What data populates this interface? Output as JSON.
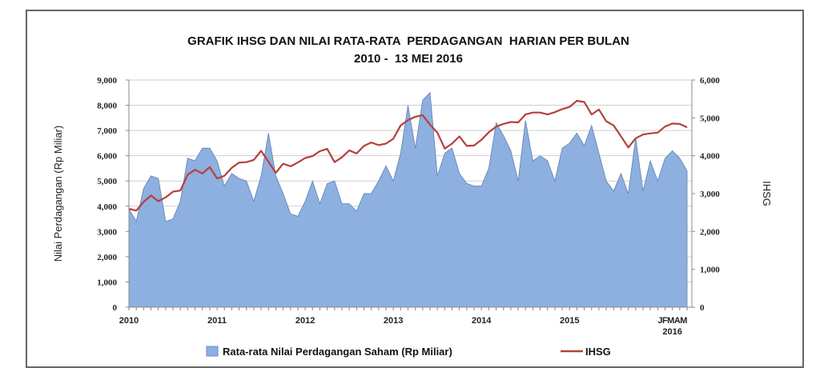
{
  "chart_data": {
    "type": "area+line",
    "title_line1": "GRAFIK IHSG DAN NILAI RATA-RATA  PERDAGANGAN  HARIAN PER BULAN",
    "title_line2": "2010 -  13 MEI 2016",
    "ylabel_left": "Nilai Perdagangan (Rp Miliar)",
    "ylabel_right": "IHSG",
    "ylim_left": [
      0,
      9000
    ],
    "ylim_right": [
      0,
      6000
    ],
    "yticks_left": [
      "0",
      "1,000",
      "2,000",
      "3,000",
      "4,000",
      "5,000",
      "6,000",
      "7,000",
      "8,000",
      "9,000"
    ],
    "yticks_right": [
      "0",
      "1,000",
      "2,000",
      "3,000",
      "4,000",
      "5,000",
      "6,000"
    ],
    "xtick_years": [
      "2010",
      "2011",
      "2012",
      "2013",
      "2014",
      "2015"
    ],
    "xtick_months_2016": "JFMAM",
    "xtick_2016": "2016",
    "grid": true,
    "legend_position": "bottom",
    "series": [
      {
        "name": "Rata-rata Nilai Perdagangan Saham (Rp Miliar)",
        "kind": "area",
        "axis": "left",
        "color": "#8db0e0",
        "values": [
          3900,
          3400,
          4700,
          5200,
          5100,
          3400,
          3500,
          4200,
          5900,
          5800,
          6300,
          6300,
          5800,
          4800,
          5300,
          5100,
          5000,
          4200,
          5200,
          6900,
          5200,
          4500,
          3700,
          3600,
          4200,
          5000,
          4100,
          4900,
          5000,
          4100,
          4100,
          3800,
          4500,
          4500,
          5000,
          5600,
          5000,
          6100,
          8000,
          6300,
          8200,
          8500,
          5200,
          6100,
          6300,
          5300,
          4900,
          4800,
          4800,
          5500,
          7300,
          6800,
          6200,
          5000,
          7400,
          5800,
          6000,
          5800,
          5000,
          6300,
          6500,
          6900,
          6400,
          7200,
          6100,
          5000,
          4600,
          5300,
          4500,
          6700,
          4600,
          5800,
          5000,
          5900,
          6200,
          5900,
          5400
        ]
      },
      {
        "name": "IHSG",
        "kind": "line",
        "axis": "right",
        "color": "#b5403c",
        "values": [
          2600,
          2550,
          2780,
          2950,
          2800,
          2900,
          3050,
          3080,
          3500,
          3630,
          3530,
          3700,
          3400,
          3470,
          3680,
          3820,
          3830,
          3890,
          4130,
          3840,
          3550,
          3790,
          3720,
          3820,
          3940,
          3990,
          4120,
          4180,
          3830,
          3960,
          4140,
          4060,
          4260,
          4350,
          4280,
          4320,
          4450,
          4800,
          4940,
          5030,
          5070,
          4820,
          4610,
          4190,
          4320,
          4510,
          4260,
          4270,
          4420,
          4620,
          4770,
          4840,
          4890,
          4880,
          5090,
          5140,
          5140,
          5090,
          5150,
          5230,
          5290,
          5450,
          5420,
          5090,
          5220,
          4910,
          4800,
          4510,
          4220,
          4460,
          4560,
          4590,
          4610,
          4770,
          4850,
          4840,
          4750
        ]
      }
    ]
  }
}
